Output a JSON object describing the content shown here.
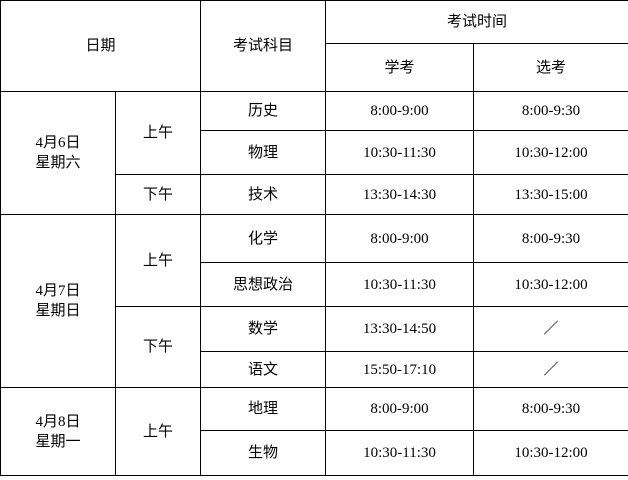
{
  "header": {
    "date": "日期",
    "subject": "考试科目",
    "exam_time": "考试时间",
    "xuekao": "学考",
    "xuankao": "选考"
  },
  "days": [
    {
      "date": "4月6日",
      "weekday": "星期六",
      "sessions": [
        {
          "period": "上午",
          "subjects": [
            {
              "name": "历史",
              "xuekao": "8:00-9:00",
              "xuankao": "8:00-9:30"
            },
            {
              "name": "物理",
              "xuekao": "10:30-11:30",
              "xuankao": "10:30-12:00"
            }
          ]
        },
        {
          "period": "下午",
          "subjects": [
            {
              "name": "技术",
              "xuekao": "13:30-14:30",
              "xuankao": "13:30-15:00"
            }
          ]
        }
      ]
    },
    {
      "date": "4月7日",
      "weekday": "星期日",
      "sessions": [
        {
          "period": "上午",
          "subjects": [
            {
              "name": "化学",
              "xuekao": "8:00-9:00",
              "xuankao": "8:00-9:30"
            },
            {
              "name": "思想政治",
              "xuekao": "10:30-11:30",
              "xuankao": "10:30-12:00"
            }
          ]
        },
        {
          "period": "下午",
          "subjects": [
            {
              "name": "数学",
              "xuekao": "13:30-14:50",
              "xuankao": "／"
            },
            {
              "name": "语文",
              "xuekao": "15:50-17:10",
              "xuankao": "／"
            }
          ]
        }
      ]
    },
    {
      "date": "4月8日",
      "weekday": "星期一",
      "sessions": [
        {
          "period": "上午",
          "subjects": [
            {
              "name": "地理",
              "xuekao": "8:00-9:00",
              "xuankao": "8:00-9:30"
            },
            {
              "name": "生物",
              "xuekao": "10:30-11:30",
              "xuankao": "10:30-12:00"
            }
          ]
        }
      ]
    }
  ]
}
